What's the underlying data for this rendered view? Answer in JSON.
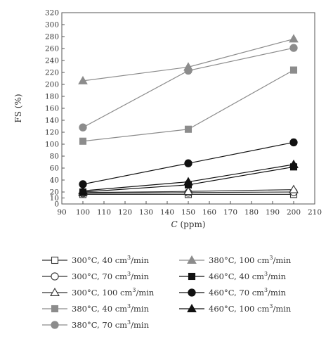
{
  "chart_data": {
    "type": "line",
    "xlabel": "C (ppm)",
    "ylabel": "FS (%)",
    "xlim": [
      90,
      210
    ],
    "ylim": [
      0,
      320
    ],
    "x_ticks": [
      90,
      100,
      110,
      120,
      130,
      140,
      150,
      160,
      170,
      180,
      190,
      200,
      210
    ],
    "y_ticks": [
      0,
      10,
      20,
      40,
      60,
      80,
      100,
      120,
      140,
      160,
      180,
      200,
      220,
      240,
      260,
      280,
      300,
      320
    ],
    "y_tick_labels": [
      "0",
      "10",
      "20",
      "40",
      "60",
      "80",
      "100",
      "120",
      "140",
      "160",
      "180",
      "200",
      "220",
      "240",
      "260",
      "280",
      "300",
      "320"
    ],
    "x": [
      100,
      150,
      200
    ],
    "grid": false,
    "legend_placement": "bottom",
    "series": [
      {
        "name": "300°C, 40 cm³/min",
        "values": [
          16,
          16,
          16
        ],
        "color": "#333333",
        "marker": "square",
        "filled": false
      },
      {
        "name": "300°C, 70 cm³/min",
        "values": [
          18,
          19,
          20
        ],
        "color": "#333333",
        "marker": "circle",
        "filled": false
      },
      {
        "name": "300°C, 100 cm³/min",
        "values": [
          19,
          21,
          24
        ],
        "color": "#333333",
        "marker": "triangle",
        "filled": false
      },
      {
        "name": "380°C, 40 cm³/min",
        "values": [
          105,
          125,
          224
        ],
        "color": "#8c8c8c",
        "marker": "square",
        "filled": true
      },
      {
        "name": "380°C, 70 cm³/min",
        "values": [
          128,
          223,
          261
        ],
        "color": "#8c8c8c",
        "marker": "circle",
        "filled": true
      },
      {
        "name": "380°C, 100 cm³/min",
        "values": [
          206,
          229,
          276
        ],
        "color": "#8c8c8c",
        "marker": "triangle",
        "filled": true
      },
      {
        "name": "460°C, 40 cm³/min",
        "values": [
          20,
          32,
          62
        ],
        "color": "#111111",
        "marker": "square",
        "filled": true
      },
      {
        "name": "460°C, 70 cm³/min",
        "values": [
          33,
          68,
          103
        ],
        "color": "#111111",
        "marker": "circle",
        "filled": true
      },
      {
        "name": "460°C, 100 cm³/min",
        "values": [
          22,
          37,
          66
        ],
        "color": "#111111",
        "marker": "triangle",
        "filled": true
      }
    ]
  }
}
